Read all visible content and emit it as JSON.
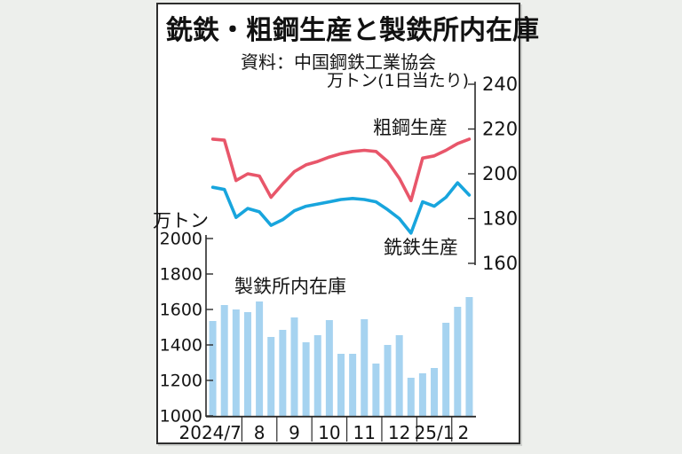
{
  "page": {
    "background": "#edefec",
    "card_background": "#ffffff",
    "card_border": "#2e2e2e"
  },
  "header": {
    "title": "銑鉄・粗鋼生産と製鉄所内在庫",
    "source": "資料：中国鋼鉄工業協会"
  },
  "chart_data": {
    "type": "combo",
    "title": "銑鉄・粗鋼生産と製鉄所内在庫",
    "source": "資料：中国鋼鉄工業協会",
    "x_months": [
      "2024/7",
      "8",
      "9",
      "10",
      "11",
      "12",
      "25/1",
      "2"
    ],
    "points_per_month": [
      3,
      3,
      3,
      3,
      3,
      3,
      3,
      2
    ],
    "grid": false,
    "legend_position": "inline-annotations",
    "left_axis": {
      "label": "万トン",
      "ticks": [
        2000,
        1800,
        1600,
        1400,
        1200,
        1000
      ],
      "range": [
        1000,
        2000
      ]
    },
    "right_axis": {
      "label": "万トン(1日当たり)",
      "ticks": [
        240,
        220,
        200,
        180,
        160
      ],
      "range": [
        160,
        240
      ]
    },
    "series": [
      {
        "name": "粗鋼生産",
        "type": "line",
        "axis": "right",
        "color": "#e8566a",
        "values": [
          215.5,
          215,
          197,
          200,
          199,
          189.5,
          195.5,
          201,
          204,
          205.5,
          207.5,
          209,
          210,
          210.5,
          210,
          205.5,
          198,
          188,
          207,
          208,
          210.5,
          213.5,
          215.5
        ]
      },
      {
        "name": "銑鉄生産",
        "type": "line",
        "axis": "right",
        "color": "#18a5dd",
        "values": [
          194,
          193,
          180.5,
          184.5,
          183,
          177,
          179.5,
          183.5,
          185.5,
          186.5,
          187.5,
          188.5,
          189,
          188.5,
          187.5,
          184,
          180,
          173.5,
          187.5,
          185.5,
          189.5,
          196,
          190.5
        ]
      },
      {
        "name": "製鉄所内在庫",
        "type": "bar",
        "axis": "left",
        "color": "#a6d3f0",
        "values": [
          1535,
          1625,
          1600,
          1585,
          1645,
          1445,
          1485,
          1555,
          1415,
          1455,
          1540,
          1350,
          1350,
          1545,
          1295,
          1400,
          1455,
          1215,
          1240,
          1270,
          1525,
          1615,
          1670
        ]
      }
    ]
  }
}
